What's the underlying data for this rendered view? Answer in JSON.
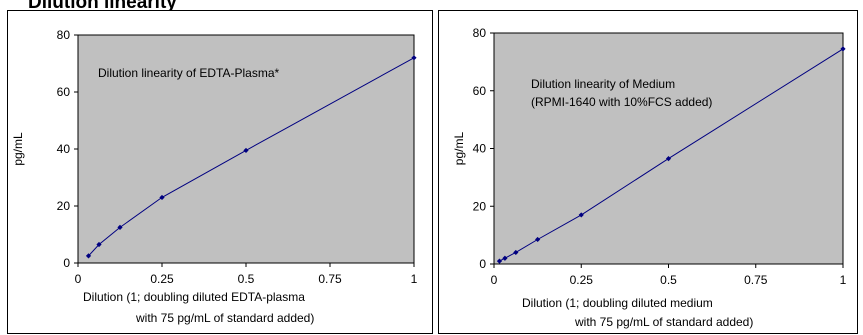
{
  "header_fragment": "Dilution linearity",
  "chart_data": [
    {
      "type": "line",
      "title": "Dilution linearity of EDTA-Plasma*",
      "subtitle": "",
      "xlabel": [
        "Dilution (1; doubling diluted EDTA-plasma",
        "with 75 pg/mL of standard added)"
      ],
      "ylabel": "pg/mL",
      "xlim": [
        0,
        1
      ],
      "ylim": [
        0,
        80
      ],
      "xticks": [
        "0",
        "0.25",
        "0.5",
        "0.75",
        "1"
      ],
      "yticks": [
        "0",
        "20",
        "40",
        "60",
        "80"
      ],
      "grid": false,
      "plot_background": "#c0c0c0",
      "line_color": "#000080",
      "series": [
        {
          "name": "",
          "x": [
            0.03125,
            0.0625,
            0.125,
            0.25,
            0.5,
            1
          ],
          "y": [
            2.5,
            6.5,
            12.5,
            23,
            39.5,
            72
          ]
        }
      ]
    },
    {
      "type": "line",
      "title": [
        "Dilution linearity of Medium",
        "(RPMI-1640 with 10%FCS added)"
      ],
      "subtitle": "",
      "xlabel": [
        "Dilution (1; doubling diluted medium",
        "with 75 pg/mL of standard added)"
      ],
      "ylabel": "pg/mL",
      "xlim": [
        0,
        1
      ],
      "ylim": [
        0,
        80
      ],
      "xticks": [
        "0",
        "0.25",
        "0.5",
        "0.75",
        "1"
      ],
      "yticks": [
        "0",
        "20",
        "40",
        "60",
        "80"
      ],
      "grid": false,
      "plot_background": "#c0c0c0",
      "line_color": "#000080",
      "series": [
        {
          "name": "",
          "x": [
            0.015625,
            0.03125,
            0.0625,
            0.125,
            0.25,
            0.5,
            1
          ],
          "y": [
            1,
            2,
            4,
            8.5,
            17,
            36.5,
            74.5
          ]
        }
      ]
    }
  ]
}
